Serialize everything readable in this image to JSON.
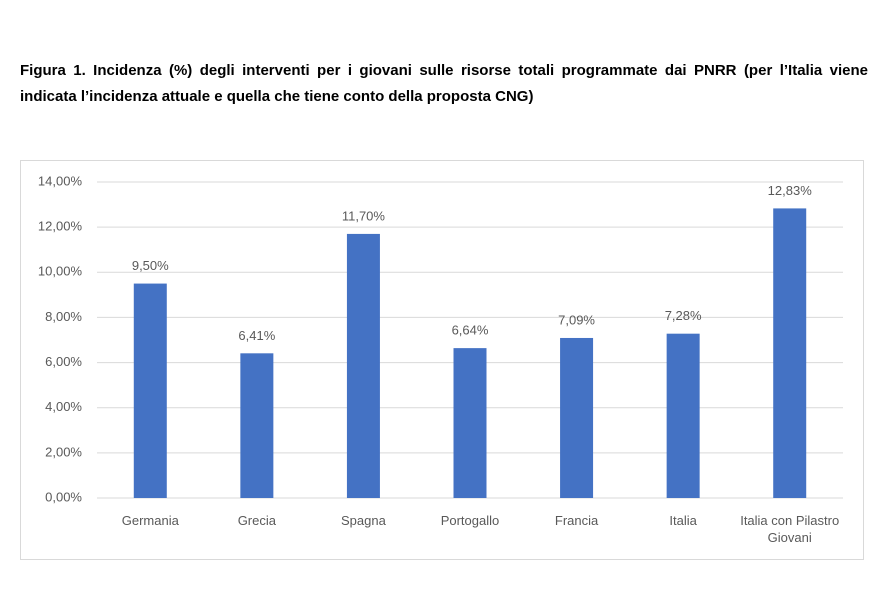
{
  "chart_data": {
    "type": "bar",
    "title": "Figura 1. Incidenza (%) degli interventi per i giovani sulle risorse totali programmate dai PNRR (per l’Italia viene indicata l’incidenza attuale e quella che tiene conto della proposta CNG)",
    "categories": [
      "Germania",
      "Grecia",
      "Spagna",
      "Portogallo",
      "Francia",
      "Italia",
      "Italia con Pilastro Giovani"
    ],
    "values": [
      9.5,
      6.41,
      11.7,
      6.64,
      7.09,
      7.28,
      12.83
    ],
    "value_labels": [
      "9,50%",
      "6,41%",
      "11,70%",
      "6,64%",
      "7,09%",
      "7,28%",
      "12,83%"
    ],
    "color": "#4472c4",
    "ylim": [
      0,
      14
    ],
    "yticks": [
      {
        "value": 0,
        "label": "0,00%"
      },
      {
        "value": 2,
        "label": "2,00%"
      },
      {
        "value": 4,
        "label": "4,00%"
      },
      {
        "value": 6,
        "label": "6,00%"
      },
      {
        "value": 8,
        "label": "8,00%"
      },
      {
        "value": 10,
        "label": "10,00%"
      },
      {
        "value": 12,
        "label": "12,00%"
      },
      {
        "value": 14,
        "label": "14,00%"
      }
    ],
    "grid": true
  }
}
